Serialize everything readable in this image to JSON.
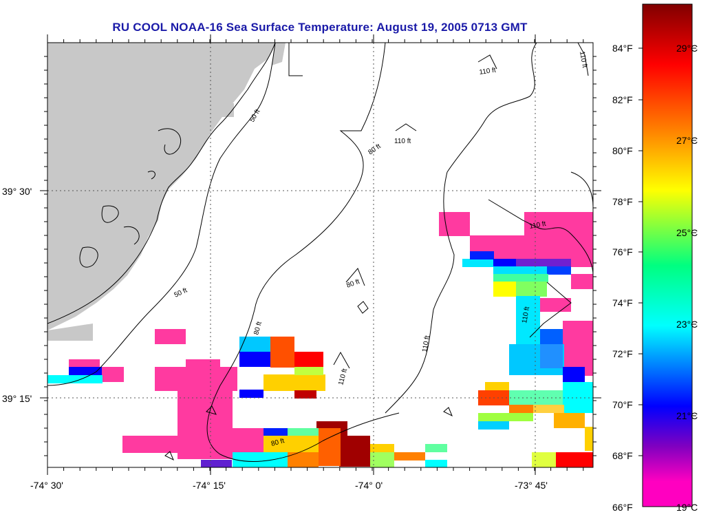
{
  "title": "RU COOL  NOAA-16  Sea Surface Temperature:  August 19, 2005 0713 GMT",
  "axes": {
    "x_ticks": [
      "-74° 30'",
      "-74° 15'",
      "-74° 0'",
      "-73° 45'"
    ],
    "y_ticks": [
      "39° 30'",
      "39° 15'"
    ]
  },
  "isobaths": [
    "50 ft",
    "50 ft",
    "80 ft",
    "80 ft",
    "80 ft",
    "80 ft",
    "110 ft",
    "110 ft",
    "110 ft",
    "110 ft",
    "110 ft",
    "110 ft",
    "110 ft"
  ],
  "colorbar": {
    "fahrenheit": [
      "84°F",
      "82°F",
      "80°F",
      "78°F",
      "76°F",
      "74°F",
      "72°F",
      "70°F",
      "68°F",
      "66°F"
    ],
    "celsius": [
      "29°C",
      "27°C",
      "25°C",
      "23°C",
      "21°C",
      "19°C"
    ],
    "colors": [
      "#800000",
      "#ff0000",
      "#ff8000",
      "#ffff00",
      "#00ff80",
      "#00ffff",
      "#0000ff",
      "#8000c0",
      "#ff00c0"
    ]
  },
  "colors": {
    "land": "#c8c8c8",
    "title": "#1a1aa8",
    "magenta": "#ff3aa0"
  }
}
